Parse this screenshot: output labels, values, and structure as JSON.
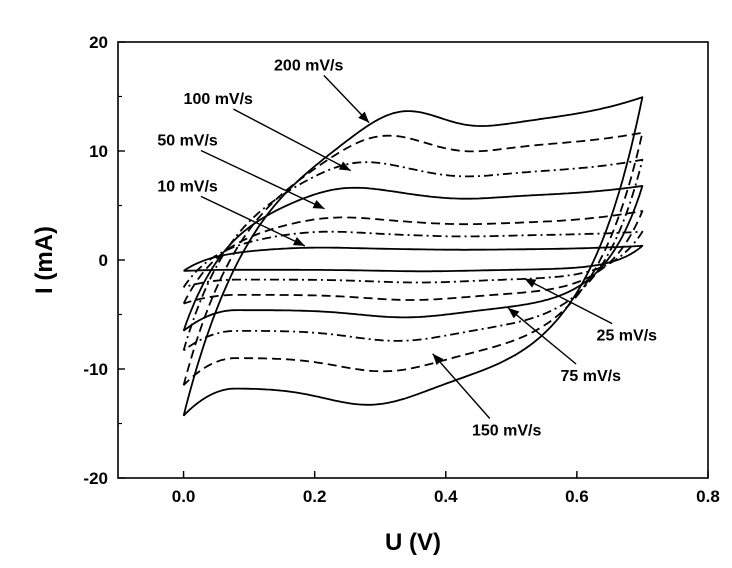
{
  "chart_data": {
    "type": "line",
    "title": "",
    "xlabel": "U (V)",
    "ylabel": "I (mA)",
    "xlim": [
      -0.1,
      0.8
    ],
    "ylim": [
      -20,
      20
    ],
    "xticks": [
      0.0,
      0.2,
      0.4,
      0.6,
      0.8
    ],
    "xtick_labels": [
      "0.0",
      "0.2",
      "0.4",
      "0.6",
      "0.8"
    ],
    "yticks": [
      -20,
      -10,
      0,
      10,
      20
    ],
    "ytick_labels": [
      "-20",
      "-10",
      "0",
      "10",
      "20"
    ],
    "grid": false,
    "legend": "none",
    "series": [
      {
        "scan_rate": 10,
        "style": "solid",
        "Ia_max": 1.0,
        "Ic_min": -0.9,
        "start_I": -1.0,
        "end_I": 1.3
      },
      {
        "scan_rate": 25,
        "style": "dashdot",
        "Ia_max": 2.3,
        "Ic_min": -1.8,
        "start_I": -2.5,
        "end_I": 2.6
      },
      {
        "scan_rate": 50,
        "style": "dashed",
        "Ia_max": 3.5,
        "Ic_min": -3.2,
        "start_I": -4.0,
        "end_I": 4.5
      },
      {
        "scan_rate": 75,
        "style": "solid",
        "Ia_max": 6.0,
        "Ic_min": -4.6,
        "start_I": -6.5,
        "end_I": 6.8
      },
      {
        "scan_rate": 100,
        "style": "dashdot",
        "Ia_max": 8.2,
        "Ic_min": -6.5,
        "start_I": -8.3,
        "end_I": 9.2
      },
      {
        "scan_rate": 150,
        "style": "dashed",
        "Ia_max": 10.7,
        "Ic_min": -9.0,
        "start_I": -11.5,
        "end_I": 11.7
      },
      {
        "scan_rate": 200,
        "style": "solid",
        "Ia_max": 13.2,
        "Ic_min": -11.8,
        "start_I": -14.3,
        "end_I": 15.0
      }
    ],
    "annotations": [
      {
        "text": "200 mV/s",
        "x": 0.138,
        "y": 17.4,
        "arrow_to": [
          0.283,
          12.6
        ]
      },
      {
        "text": "100 mV/s",
        "x": 0.0,
        "y": 14.3,
        "arrow_to": [
          0.255,
          8.2
        ]
      },
      {
        "text": "50 mV/s",
        "x": -0.04,
        "y": 10.5,
        "arrow_to": [
          0.215,
          4.7
        ]
      },
      {
        "text": "10 mV/s",
        "x": -0.04,
        "y": 6.3,
        "arrow_to": [
          0.185,
          1.3
        ]
      },
      {
        "text": "25 mV/s",
        "x": 0.63,
        "y": -7.4,
        "arrow_to": [
          0.52,
          -1.7
        ]
      },
      {
        "text": "75 mV/s",
        "x": 0.575,
        "y": -11.1,
        "arrow_to": [
          0.495,
          -4.4
        ]
      },
      {
        "text": "150 mV/s",
        "x": 0.44,
        "y": -16.1,
        "arrow_to": [
          0.38,
          -8.6
        ]
      }
    ]
  }
}
